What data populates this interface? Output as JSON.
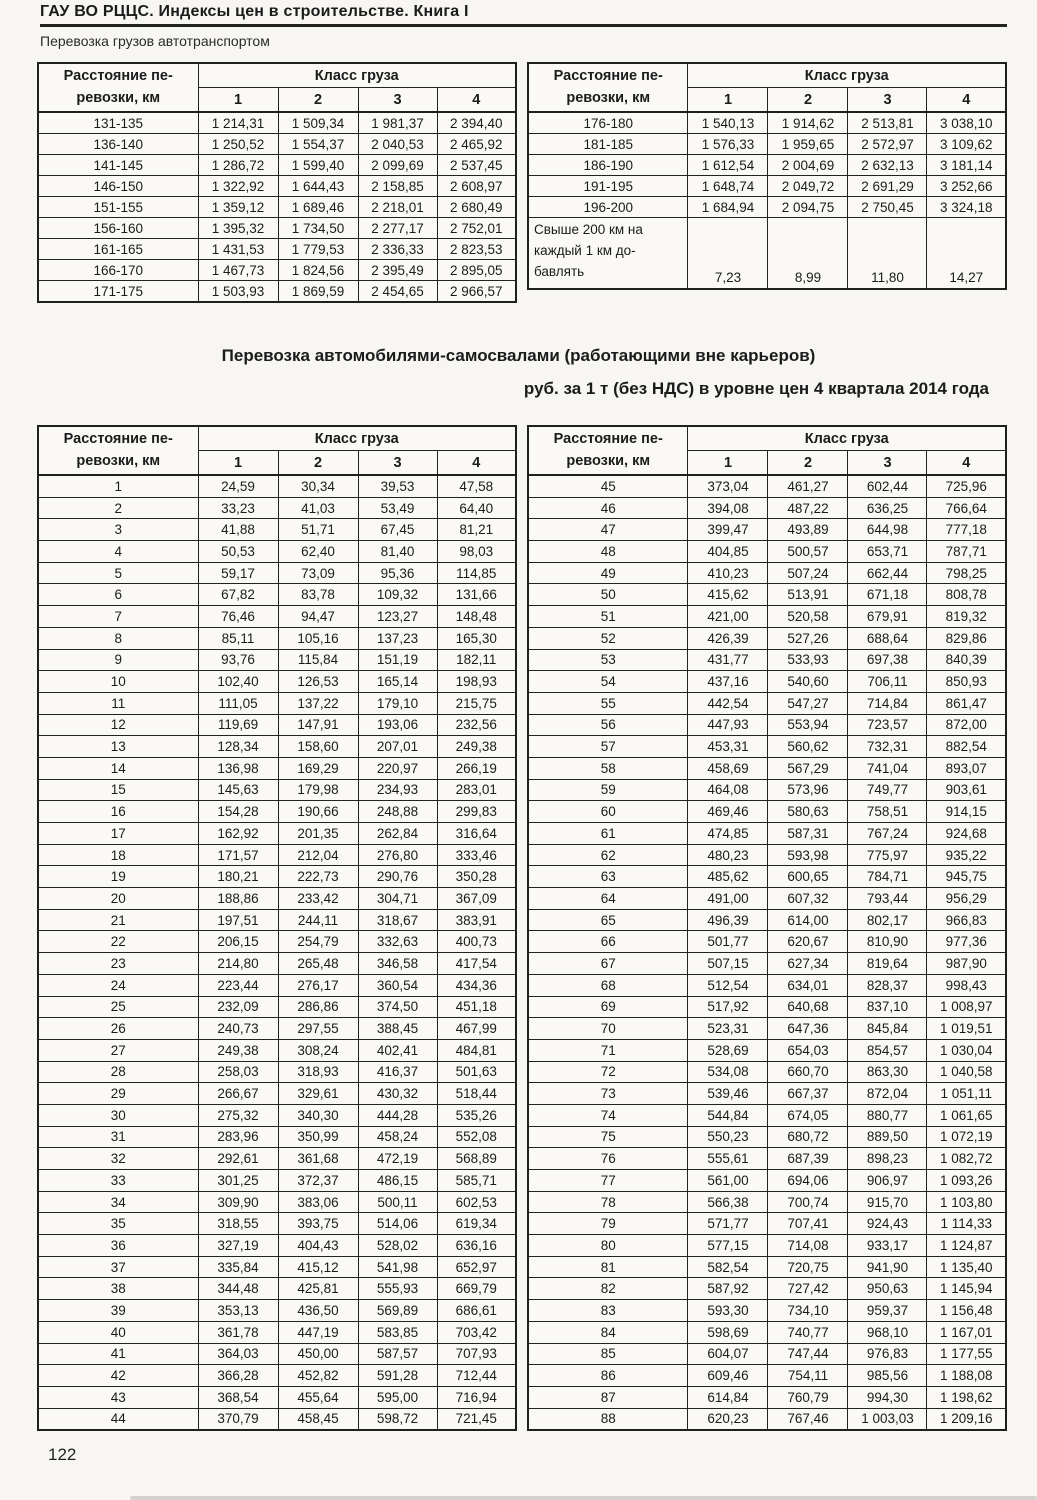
{
  "page": {
    "running_head": "ГАУ ВО РЦЦС. Индексы цен в строительстве. Книга I",
    "running_sub": "Перевозка грузов автотранспортом",
    "page_number": "122"
  },
  "section": {
    "title": "Перевозка автомобилями-самосвалами (работающими вне карьеров)",
    "subtitle": "руб. за 1 т (без НДС) в уровне цен 4 квартала 2014 года"
  },
  "shared": {
    "distance_header": "Расстояние пе-\nревозки, км",
    "cargo_class_header": "Класс груза",
    "columns": [
      "1",
      "2",
      "3",
      "4"
    ]
  },
  "tables": {
    "t1": {
      "rows": [
        [
          "131-135",
          "1 214,31",
          "1 509,34",
          "1 981,37",
          "2 394,40"
        ],
        [
          "136-140",
          "1 250,52",
          "1 554,37",
          "2 040,53",
          "2 465,92"
        ],
        [
          "141-145",
          "1 286,72",
          "1 599,40",
          "2 099,69",
          "2 537,45"
        ],
        [
          "146-150",
          "1 322,92",
          "1 644,43",
          "2 158,85",
          "2 608,97"
        ],
        [
          "151-155",
          "1 359,12",
          "1 689,46",
          "2 218,01",
          "2 680,49"
        ],
        [
          "156-160",
          "1 395,32",
          "1 734,50",
          "2 277,17",
          "2 752,01"
        ],
        [
          "161-165",
          "1 431,53",
          "1 779,53",
          "2 336,33",
          "2 823,53"
        ],
        [
          "166-170",
          "1 467,73",
          "1 824,56",
          "2 395,49",
          "2 895,05"
        ],
        [
          "171-175",
          "1 503,93",
          "1 869,59",
          "2 454,65",
          "2 966,57"
        ]
      ]
    },
    "t2": {
      "rows": [
        [
          "176-180",
          "1 540,13",
          "1 914,62",
          "2 513,81",
          "3 038,10"
        ],
        [
          "181-185",
          "1 576,33",
          "1 959,65",
          "2 572,97",
          "3 109,62"
        ],
        [
          "186-190",
          "1 612,54",
          "2 004,69",
          "2 632,13",
          "3 181,14"
        ],
        [
          "191-195",
          "1 648,74",
          "2 049,72",
          "2 691,29",
          "3 252,66"
        ],
        [
          "196-200",
          "1 684,94",
          "2 094,75",
          "2 750,45",
          "3 324,18"
        ],
        {
          "label": "Свыше 200 км на\nкаждый 1 км до-\nбавлять",
          "values": [
            "7,23",
            "8,99",
            "11,80",
            "14,27"
          ]
        }
      ]
    },
    "t3": {
      "rows": [
        [
          "1",
          "24,59",
          "30,34",
          "39,53",
          "47,58"
        ],
        [
          "2",
          "33,23",
          "41,03",
          "53,49",
          "64,40"
        ],
        [
          "3",
          "41,88",
          "51,71",
          "67,45",
          "81,21"
        ],
        [
          "4",
          "50,53",
          "62,40",
          "81,40",
          "98,03"
        ],
        [
          "5",
          "59,17",
          "73,09",
          "95,36",
          "114,85"
        ],
        [
          "6",
          "67,82",
          "83,78",
          "109,32",
          "131,66"
        ],
        [
          "7",
          "76,46",
          "94,47",
          "123,27",
          "148,48"
        ],
        [
          "8",
          "85,11",
          "105,16",
          "137,23",
          "165,30"
        ],
        [
          "9",
          "93,76",
          "115,84",
          "151,19",
          "182,11"
        ],
        [
          "10",
          "102,40",
          "126,53",
          "165,14",
          "198,93"
        ],
        [
          "11",
          "111,05",
          "137,22",
          "179,10",
          "215,75"
        ],
        [
          "12",
          "119,69",
          "147,91",
          "193,06",
          "232,56"
        ],
        [
          "13",
          "128,34",
          "158,60",
          "207,01",
          "249,38"
        ],
        [
          "14",
          "136,98",
          "169,29",
          "220,97",
          "266,19"
        ],
        [
          "15",
          "145,63",
          "179,98",
          "234,93",
          "283,01"
        ],
        [
          "16",
          "154,28",
          "190,66",
          "248,88",
          "299,83"
        ],
        [
          "17",
          "162,92",
          "201,35",
          "262,84",
          "316,64"
        ],
        [
          "18",
          "171,57",
          "212,04",
          "276,80",
          "333,46"
        ],
        [
          "19",
          "180,21",
          "222,73",
          "290,76",
          "350,28"
        ],
        [
          "20",
          "188,86",
          "233,42",
          "304,71",
          "367,09"
        ],
        [
          "21",
          "197,51",
          "244,11",
          "318,67",
          "383,91"
        ],
        [
          "22",
          "206,15",
          "254,79",
          "332,63",
          "400,73"
        ],
        [
          "23",
          "214,80",
          "265,48",
          "346,58",
          "417,54"
        ],
        [
          "24",
          "223,44",
          "276,17",
          "360,54",
          "434,36"
        ],
        [
          "25",
          "232,09",
          "286,86",
          "374,50",
          "451,18"
        ],
        [
          "26",
          "240,73",
          "297,55",
          "388,45",
          "467,99"
        ],
        [
          "27",
          "249,38",
          "308,24",
          "402,41",
          "484,81"
        ],
        [
          "28",
          "258,03",
          "318,93",
          "416,37",
          "501,63"
        ],
        [
          "29",
          "266,67",
          "329,61",
          "430,32",
          "518,44"
        ],
        [
          "30",
          "275,32",
          "340,30",
          "444,28",
          "535,26"
        ],
        [
          "31",
          "283,96",
          "350,99",
          "458,24",
          "552,08"
        ],
        [
          "32",
          "292,61",
          "361,68",
          "472,19",
          "568,89"
        ],
        [
          "33",
          "301,25",
          "372,37",
          "486,15",
          "585,71"
        ],
        [
          "34",
          "309,90",
          "383,06",
          "500,11",
          "602,53"
        ],
        [
          "35",
          "318,55",
          "393,75",
          "514,06",
          "619,34"
        ],
        [
          "36",
          "327,19",
          "404,43",
          "528,02",
          "636,16"
        ],
        [
          "37",
          "335,84",
          "415,12",
          "541,98",
          "652,97"
        ],
        [
          "38",
          "344,48",
          "425,81",
          "555,93",
          "669,79"
        ],
        [
          "39",
          "353,13",
          "436,50",
          "569,89",
          "686,61"
        ],
        [
          "40",
          "361,78",
          "447,19",
          "583,85",
          "703,42"
        ],
        [
          "41",
          "364,03",
          "450,00",
          "587,57",
          "707,93"
        ],
        [
          "42",
          "366,28",
          "452,82",
          "591,28",
          "712,44"
        ],
        [
          "43",
          "368,54",
          "455,64",
          "595,00",
          "716,94"
        ],
        [
          "44",
          "370,79",
          "458,45",
          "598,72",
          "721,45"
        ]
      ]
    },
    "t4": {
      "rows": [
        [
          "45",
          "373,04",
          "461,27",
          "602,44",
          "725,96"
        ],
        [
          "46",
          "394,08",
          "487,22",
          "636,25",
          "766,64"
        ],
        [
          "47",
          "399,47",
          "493,89",
          "644,98",
          "777,18"
        ],
        [
          "48",
          "404,85",
          "500,57",
          "653,71",
          "787,71"
        ],
        [
          "49",
          "410,23",
          "507,24",
          "662,44",
          "798,25"
        ],
        [
          "50",
          "415,62",
          "513,91",
          "671,18",
          "808,78"
        ],
        [
          "51",
          "421,00",
          "520,58",
          "679,91",
          "819,32"
        ],
        [
          "52",
          "426,39",
          "527,26",
          "688,64",
          "829,86"
        ],
        [
          "53",
          "431,77",
          "533,93",
          "697,38",
          "840,39"
        ],
        [
          "54",
          "437,16",
          "540,60",
          "706,11",
          "850,93"
        ],
        [
          "55",
          "442,54",
          "547,27",
          "714,84",
          "861,47"
        ],
        [
          "56",
          "447,93",
          "553,94",
          "723,57",
          "872,00"
        ],
        [
          "57",
          "453,31",
          "560,62",
          "732,31",
          "882,54"
        ],
        [
          "58",
          "458,69",
          "567,29",
          "741,04",
          "893,07"
        ],
        [
          "59",
          "464,08",
          "573,96",
          "749,77",
          "903,61"
        ],
        [
          "60",
          "469,46",
          "580,63",
          "758,51",
          "914,15"
        ],
        [
          "61",
          "474,85",
          "587,31",
          "767,24",
          "924,68"
        ],
        [
          "62",
          "480,23",
          "593,98",
          "775,97",
          "935,22"
        ],
        [
          "63",
          "485,62",
          "600,65",
          "784,71",
          "945,75"
        ],
        [
          "64",
          "491,00",
          "607,32",
          "793,44",
          "956,29"
        ],
        [
          "65",
          "496,39",
          "614,00",
          "802,17",
          "966,83"
        ],
        [
          "66",
          "501,77",
          "620,67",
          "810,90",
          "977,36"
        ],
        [
          "67",
          "507,15",
          "627,34",
          "819,64",
          "987,90"
        ],
        [
          "68",
          "512,54",
          "634,01",
          "828,37",
          "998,43"
        ],
        [
          "69",
          "517,92",
          "640,68",
          "837,10",
          "1 008,97"
        ],
        [
          "70",
          "523,31",
          "647,36",
          "845,84",
          "1 019,51"
        ],
        [
          "71",
          "528,69",
          "654,03",
          "854,57",
          "1 030,04"
        ],
        [
          "72",
          "534,08",
          "660,70",
          "863,30",
          "1 040,58"
        ],
        [
          "73",
          "539,46",
          "667,37",
          "872,04",
          "1 051,11"
        ],
        [
          "74",
          "544,84",
          "674,05",
          "880,77",
          "1 061,65"
        ],
        [
          "75",
          "550,23",
          "680,72",
          "889,50",
          "1 072,19"
        ],
        [
          "76",
          "555,61",
          "687,39",
          "898,23",
          "1 082,72"
        ],
        [
          "77",
          "561,00",
          "694,06",
          "906,97",
          "1 093,26"
        ],
        [
          "78",
          "566,38",
          "700,74",
          "915,70",
          "1 103,80"
        ],
        [
          "79",
          "571,77",
          "707,41",
          "924,43",
          "1 114,33"
        ],
        [
          "80",
          "577,15",
          "714,08",
          "933,17",
          "1 124,87"
        ],
        [
          "81",
          "582,54",
          "720,75",
          "941,90",
          "1 135,40"
        ],
        [
          "82",
          "587,92",
          "727,42",
          "950,63",
          "1 145,94"
        ],
        [
          "83",
          "593,30",
          "734,10",
          "959,37",
          "1 156,48"
        ],
        [
          "84",
          "598,69",
          "740,77",
          "968,10",
          "1 167,01"
        ],
        [
          "85",
          "604,07",
          "747,44",
          "976,83",
          "1 177,55"
        ],
        [
          "86",
          "609,46",
          "754,11",
          "985,56",
          "1 188,08"
        ],
        [
          "87",
          "614,84",
          "760,79",
          "994,30",
          "1 198,62"
        ],
        [
          "88",
          "620,23",
          "767,46",
          "1 003,03",
          "1 209,16"
        ]
      ]
    }
  }
}
